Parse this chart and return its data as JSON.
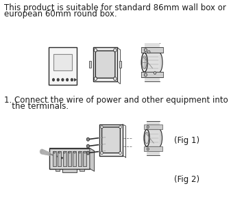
{
  "bg_color": "#ffffff",
  "text1_line1": "This product is suitable for standard 86mm wall box or",
  "text1_line2": "european 60mm round box.",
  "text2_line1": "1. Connect the wire of power and other equipment into",
  "text2_line2": "   the terminals.",
  "fig1_label": "(Fig 1)",
  "fig2_label": "(Fig 2)",
  "text_color": "#1a1a1a",
  "line_color": "#2a2a2a",
  "gray_color": "#777777",
  "light_gray": "#cccccc",
  "dark_gray": "#444444",
  "font_size_main": 8.5
}
